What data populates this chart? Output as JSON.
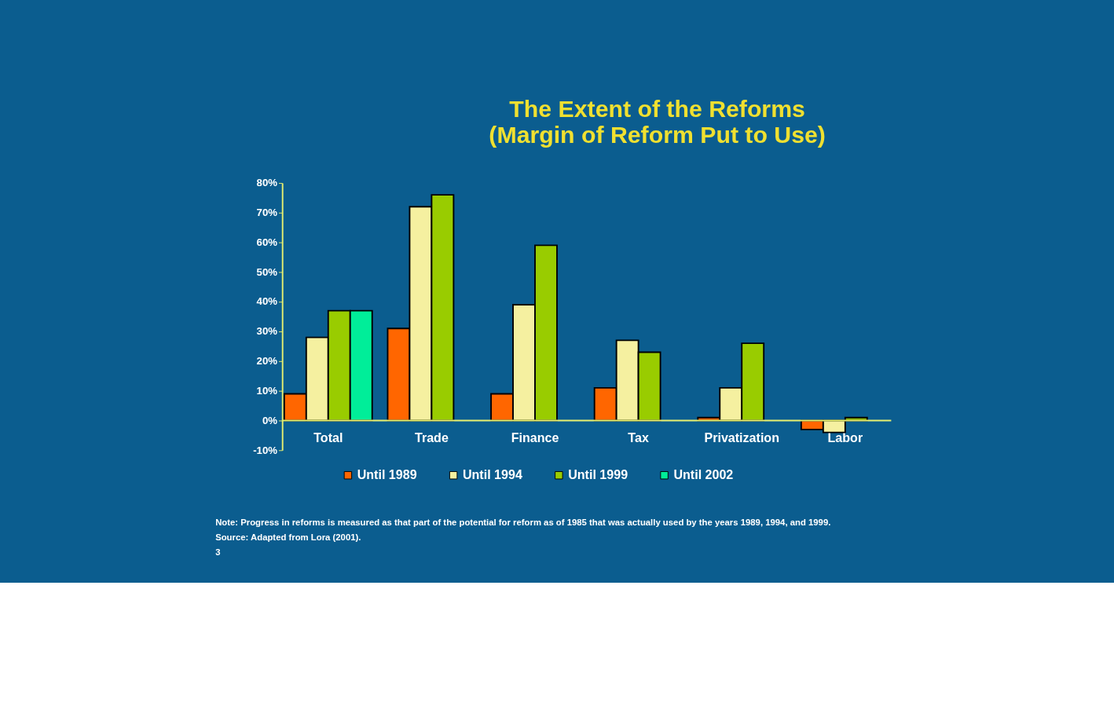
{
  "chart_data": {
    "type": "bar",
    "title": "The Extent of the Reforms",
    "subtitle": "(Margin of Reform Put to Use)",
    "categories": [
      "Total",
      "Trade",
      "Finance",
      "Tax",
      "Privatization",
      "Labor"
    ],
    "series": [
      {
        "name": "Until 1989",
        "color": "#ff6600",
        "values": [
          9,
          31,
          9,
          11,
          1,
          -3
        ]
      },
      {
        "name": "Until 1994",
        "color": "#f5f0a0",
        "values": [
          28,
          72,
          39,
          27,
          11,
          -4
        ]
      },
      {
        "name": "Until 1999",
        "color": "#99cc00",
        "values": [
          37,
          76,
          59,
          23,
          26,
          1
        ]
      },
      {
        "name": "Until 2002",
        "color": "#00ee99",
        "values": [
          37,
          null,
          null,
          null,
          null,
          null
        ]
      }
    ],
    "ylim": [
      -10,
      80
    ],
    "yticks": [
      {
        "value": -10,
        "label": "-10%"
      },
      {
        "value": 0,
        "label": "0%"
      },
      {
        "value": 10,
        "label": "10%"
      },
      {
        "value": 20,
        "label": "20%"
      },
      {
        "value": 30,
        "label": "30%"
      },
      {
        "value": 40,
        "label": "40%"
      },
      {
        "value": 50,
        "label": "50%"
      },
      {
        "value": 60,
        "label": "60%"
      },
      {
        "value": 70,
        "label": "70%"
      },
      {
        "value": 80,
        "label": "80%"
      }
    ],
    "legend": "bottom",
    "grid": false,
    "annotations": [
      "Note: Progress in reforms is measured as that part of the potential for reform as of 1985 that was actually used by the years 1989, 1994, and 1999.",
      "Source: Adapted from Lora (2001).",
      "3"
    ]
  }
}
